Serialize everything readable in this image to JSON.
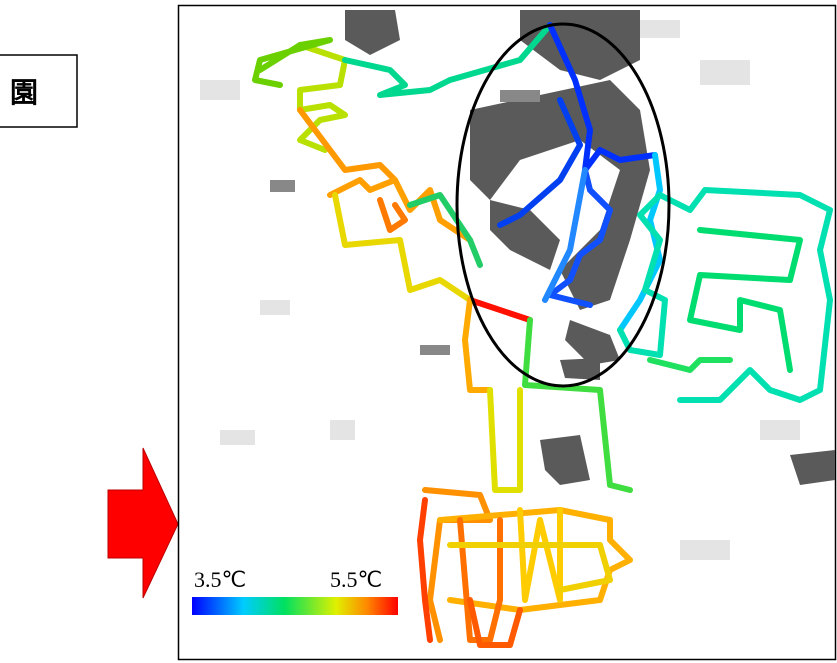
{
  "label_box": {
    "text": "園"
  },
  "colorbar": {
    "min_label": "3.5℃",
    "max_label": "5.5℃"
  }
}
